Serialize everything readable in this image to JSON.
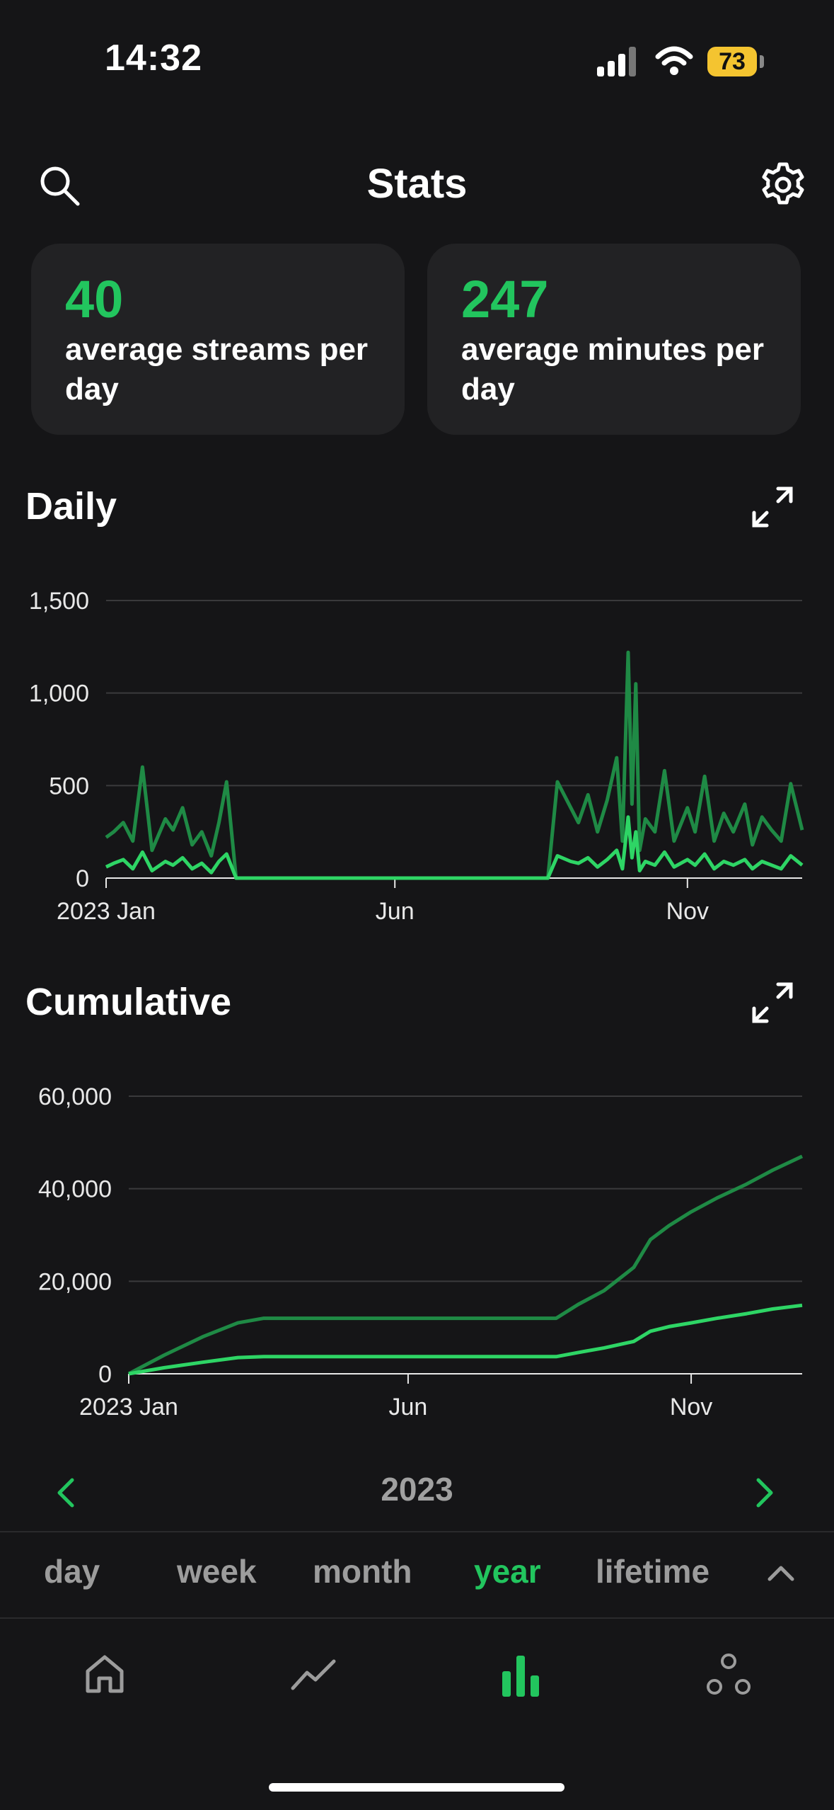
{
  "status_bar": {
    "time": "14:32",
    "battery": "73"
  },
  "header": {
    "title": "Stats"
  },
  "stats": [
    {
      "value": "40",
      "label": "average streams per day"
    },
    {
      "value": "247",
      "label": "average minutes per day"
    }
  ],
  "charts": {
    "daily_title": "Daily",
    "cumulative_title": "Cumulative"
  },
  "chart_data": [
    {
      "type": "line",
      "title": "Daily",
      "xlabel": "",
      "ylabel": "",
      "x_ticks": [
        "2023 Jan",
        "Jun",
        "Nov"
      ],
      "y_ticks": [
        "0",
        "500",
        "1,000",
        "1,500"
      ],
      "ylim": [
        0,
        1500
      ],
      "grid": true,
      "colors": [
        "#1f8a45",
        "#2ed565"
      ],
      "series": [
        {
          "x": [
            "2023-01-01",
            "2023-01-05",
            "2023-01-10",
            "2023-01-15",
            "2023-01-20",
            "2023-01-25",
            "2023-02-01",
            "2023-02-05",
            "2023-02-10",
            "2023-02-15",
            "2023-02-20",
            "2023-02-25",
            "2023-03-01",
            "2023-03-05",
            "2023-03-10",
            "2023-03-15",
            "2023-06-01",
            "2023-08-20",
            "2023-08-25",
            "2023-09-01",
            "2023-09-05",
            "2023-09-10",
            "2023-09-15",
            "2023-09-20",
            "2023-09-25",
            "2023-09-28",
            "2023-10-01",
            "2023-10-03",
            "2023-10-05",
            "2023-10-07",
            "2023-10-10",
            "2023-10-15",
            "2023-10-20",
            "2023-10-25",
            "2023-11-01",
            "2023-11-05",
            "2023-11-10",
            "2023-11-15",
            "2023-11-20",
            "2023-11-25",
            "2023-12-01",
            "2023-12-05",
            "2023-12-10",
            "2023-12-15",
            "2023-12-20",
            "2023-12-25",
            "2023-12-31"
          ],
          "values": [
            220,
            250,
            300,
            200,
            600,
            150,
            320,
            260,
            380,
            180,
            250,
            120,
            300,
            520,
            0,
            0,
            0,
            0,
            520,
            380,
            300,
            450,
            250,
            420,
            650,
            200,
            1220,
            400,
            1050,
            150,
            320,
            250,
            580,
            200,
            380,
            250,
            550,
            200,
            350,
            250,
            400,
            180,
            330,
            260,
            200,
            510,
            260
          ]
        },
        {
          "x": [
            "2023-01-01",
            "2023-01-05",
            "2023-01-10",
            "2023-01-15",
            "2023-01-20",
            "2023-01-25",
            "2023-02-01",
            "2023-02-05",
            "2023-02-10",
            "2023-02-15",
            "2023-02-20",
            "2023-02-25",
            "2023-03-01",
            "2023-03-05",
            "2023-03-10",
            "2023-03-15",
            "2023-06-01",
            "2023-08-20",
            "2023-08-25",
            "2023-09-01",
            "2023-09-05",
            "2023-09-10",
            "2023-09-15",
            "2023-09-20",
            "2023-09-25",
            "2023-09-28",
            "2023-10-01",
            "2023-10-03",
            "2023-10-05",
            "2023-10-07",
            "2023-10-10",
            "2023-10-15",
            "2023-10-20",
            "2023-10-25",
            "2023-11-01",
            "2023-11-05",
            "2023-11-10",
            "2023-11-15",
            "2023-11-20",
            "2023-11-25",
            "2023-12-01",
            "2023-12-05",
            "2023-12-10",
            "2023-12-15",
            "2023-12-20",
            "2023-12-25",
            "2023-12-31"
          ],
          "values": [
            60,
            80,
            100,
            50,
            140,
            40,
            90,
            70,
            110,
            50,
            80,
            30,
            90,
            130,
            0,
            0,
            0,
            0,
            120,
            90,
            80,
            110,
            60,
            100,
            150,
            50,
            330,
            110,
            250,
            40,
            90,
            70,
            140,
            60,
            100,
            70,
            130,
            50,
            90,
            70,
            100,
            50,
            90,
            70,
            50,
            120,
            70
          ]
        }
      ]
    },
    {
      "type": "line",
      "title": "Cumulative",
      "xlabel": "",
      "ylabel": "",
      "x_ticks": [
        "2023 Jan",
        "Jun",
        "Nov"
      ],
      "y_ticks": [
        "0",
        "20,000",
        "40,000",
        "60,000"
      ],
      "ylim": [
        0,
        60000
      ],
      "grid": true,
      "colors": [
        "#1f8a45",
        "#2ed565"
      ],
      "series": [
        {
          "x": [
            "2023-01-01",
            "2023-01-20",
            "2023-02-10",
            "2023-03-01",
            "2023-03-15",
            "2023-06-01",
            "2023-08-20",
            "2023-09-01",
            "2023-09-15",
            "2023-10-01",
            "2023-10-10",
            "2023-10-20",
            "2023-11-01",
            "2023-11-15",
            "2023-12-01",
            "2023-12-15",
            "2023-12-31"
          ],
          "values": [
            0,
            4000,
            8000,
            11000,
            12000,
            12000,
            12000,
            15000,
            18000,
            23000,
            29000,
            32000,
            35000,
            38000,
            41000,
            44000,
            47000
          ]
        },
        {
          "x": [
            "2023-01-01",
            "2023-01-20",
            "2023-02-10",
            "2023-03-01",
            "2023-03-15",
            "2023-06-01",
            "2023-08-20",
            "2023-09-01",
            "2023-09-15",
            "2023-10-01",
            "2023-10-10",
            "2023-10-20",
            "2023-11-01",
            "2023-11-15",
            "2023-12-01",
            "2023-12-15",
            "2023-12-31"
          ],
          "values": [
            0,
            1300,
            2500,
            3500,
            3700,
            3700,
            3700,
            4600,
            5600,
            7000,
            9200,
            10200,
            11000,
            12000,
            13000,
            14000,
            14800
          ]
        }
      ]
    }
  ],
  "year_nav": {
    "label": "2023"
  },
  "periods": [
    "day",
    "week",
    "month",
    "year",
    "lifetime"
  ],
  "active_period": "year",
  "colors": {
    "accent": "#22c55e",
    "background": "#151517",
    "card": "#222224"
  }
}
